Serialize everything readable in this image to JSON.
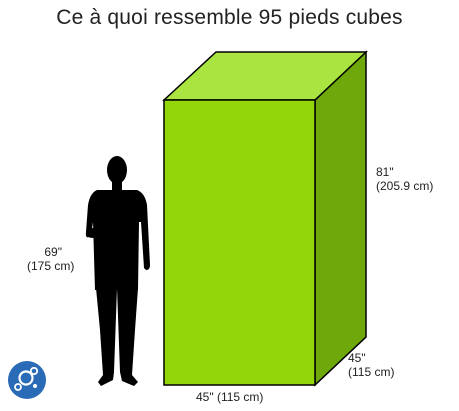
{
  "title": "Ce à quoi ressemble 95 pieds cubes",
  "box": {
    "height": {
      "inches": "81\"",
      "cm": "(205.9 cm)"
    },
    "depth": {
      "inches": "45\"",
      "cm": "(115 cm)"
    },
    "width_label": "45\" (115 cm)"
  },
  "person": {
    "height": {
      "inches": "69\"",
      "cm": "(175 cm)"
    }
  },
  "colors": {
    "front": "#93d60a",
    "side": "#6fa80a",
    "top": "#a9e440",
    "outline": "#000000",
    "silhouette": "#000000",
    "logo": "#2a6bb7"
  },
  "logo_icon": "bubbles-logo-icon"
}
